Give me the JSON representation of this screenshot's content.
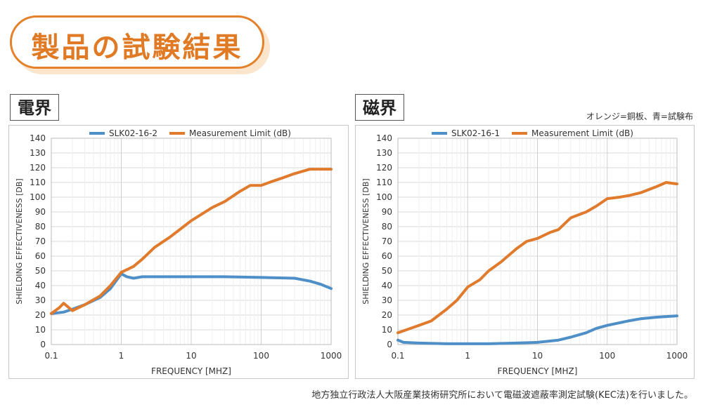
{
  "page": {
    "title": "製品の試験結果",
    "electric_label": "電界",
    "magnetic_label": "磁界",
    "legend_note": "オレンジ=銅板、青=試験布",
    "footnote": "地方独立行政法人大阪産業技術研究所において電磁波遮蔽率測定試験(KEC法)を行いました。"
  },
  "colors": {
    "orange": "#e07a2c",
    "blue": "#4f8fc7",
    "accent": "#e4822b"
  },
  "chart_data": [
    {
      "type": "line",
      "title": "",
      "xlabel": "FREQUENCY [MHZ]",
      "ylabel": "SHIELDING EFFECTIVENESS [DB]",
      "x_scale": "log",
      "xlim": [
        0.1,
        1000
      ],
      "ylim": [
        0,
        140
      ],
      "x_ticks": [
        "0.1",
        "1",
        "10",
        "100",
        "1000"
      ],
      "y_ticks": [
        "0",
        "10",
        "20",
        "30",
        "40",
        "50",
        "60",
        "70",
        "80",
        "90",
        "100",
        "110",
        "120",
        "130",
        "140"
      ],
      "legend_position": "top",
      "grid": true,
      "series": [
        {
          "name": "SLK02-16-2",
          "color": "#4f8fc7",
          "points": [
            [
              0.1,
              21
            ],
            [
              0.15,
              22
            ],
            [
              0.2,
              24
            ],
            [
              0.3,
              27
            ],
            [
              0.5,
              32
            ],
            [
              0.7,
              38
            ],
            [
              0.9,
              45
            ],
            [
              1.0,
              48
            ],
            [
              1.2,
              46
            ],
            [
              1.5,
              45
            ],
            [
              2,
              46
            ],
            [
              3,
              46
            ],
            [
              5,
              46
            ],
            [
              10,
              46
            ],
            [
              30,
              46
            ],
            [
              100,
              45.5
            ],
            [
              300,
              45
            ],
            [
              500,
              43
            ],
            [
              700,
              41
            ],
            [
              1000,
              38
            ]
          ]
        },
        {
          "name": "Measurement Limit (dB)",
          "color": "#e07a2c",
          "points": [
            [
              0.1,
              21
            ],
            [
              0.13,
              25
            ],
            [
              0.15,
              28
            ],
            [
              0.2,
              23
            ],
            [
              0.3,
              27
            ],
            [
              0.5,
              33
            ],
            [
              0.7,
              40
            ],
            [
              1.0,
              49
            ],
            [
              1.5,
              53
            ],
            [
              2,
              58
            ],
            [
              3,
              66
            ],
            [
              5,
              73
            ],
            [
              10,
              84
            ],
            [
              20,
              93
            ],
            [
              30,
              97
            ],
            [
              50,
              104
            ],
            [
              70,
              108
            ],
            [
              100,
              108
            ],
            [
              150,
              111
            ],
            [
              200,
              113
            ],
            [
              300,
              116
            ],
            [
              500,
              119
            ],
            [
              700,
              119
            ],
            [
              1000,
              119
            ]
          ]
        }
      ]
    },
    {
      "type": "line",
      "title": "",
      "xlabel": "FREQUENCY [MHZ]",
      "ylabel": "SHIELDING EFFECTIVENESS [DB]",
      "x_scale": "log",
      "xlim": [
        0.1,
        1000
      ],
      "ylim": [
        0,
        140
      ],
      "x_ticks": [
        "0.1",
        "1",
        "10",
        "100",
        "1000"
      ],
      "y_ticks": [
        "0",
        "10",
        "20",
        "30",
        "40",
        "50",
        "60",
        "70",
        "80",
        "90",
        "100",
        "110",
        "120",
        "130",
        "140"
      ],
      "legend_position": "top",
      "grid": true,
      "series": [
        {
          "name": "SLK02-16-1",
          "color": "#4f8fc7",
          "points": [
            [
              0.1,
              3
            ],
            [
              0.12,
              1.5
            ],
            [
              0.2,
              1
            ],
            [
              0.5,
              0.5
            ],
            [
              1,
              0.5
            ],
            [
              2,
              0.5
            ],
            [
              5,
              1
            ],
            [
              10,
              1.5
            ],
            [
              20,
              3
            ],
            [
              30,
              5
            ],
            [
              50,
              8
            ],
            [
              70,
              11
            ],
            [
              100,
              13
            ],
            [
              200,
              16
            ],
            [
              300,
              17.5
            ],
            [
              500,
              18.5
            ],
            [
              1000,
              19.5
            ]
          ]
        },
        {
          "name": "Measurement Limit (dB)",
          "color": "#e07a2c",
          "points": [
            [
              0.1,
              8
            ],
            [
              0.2,
              13
            ],
            [
              0.3,
              16
            ],
            [
              0.5,
              24
            ],
            [
              0.7,
              30
            ],
            [
              1,
              39
            ],
            [
              1.5,
              44
            ],
            [
              2,
              50
            ],
            [
              3,
              56
            ],
            [
              5,
              65
            ],
            [
              7,
              70
            ],
            [
              10,
              72
            ],
            [
              15,
              76
            ],
            [
              20,
              78
            ],
            [
              30,
              86
            ],
            [
              50,
              90
            ],
            [
              70,
              94
            ],
            [
              100,
              99
            ],
            [
              150,
              100
            ],
            [
              200,
              101
            ],
            [
              300,
              103
            ],
            [
              500,
              107
            ],
            [
              700,
              110
            ],
            [
              1000,
              109
            ]
          ]
        }
      ]
    }
  ]
}
